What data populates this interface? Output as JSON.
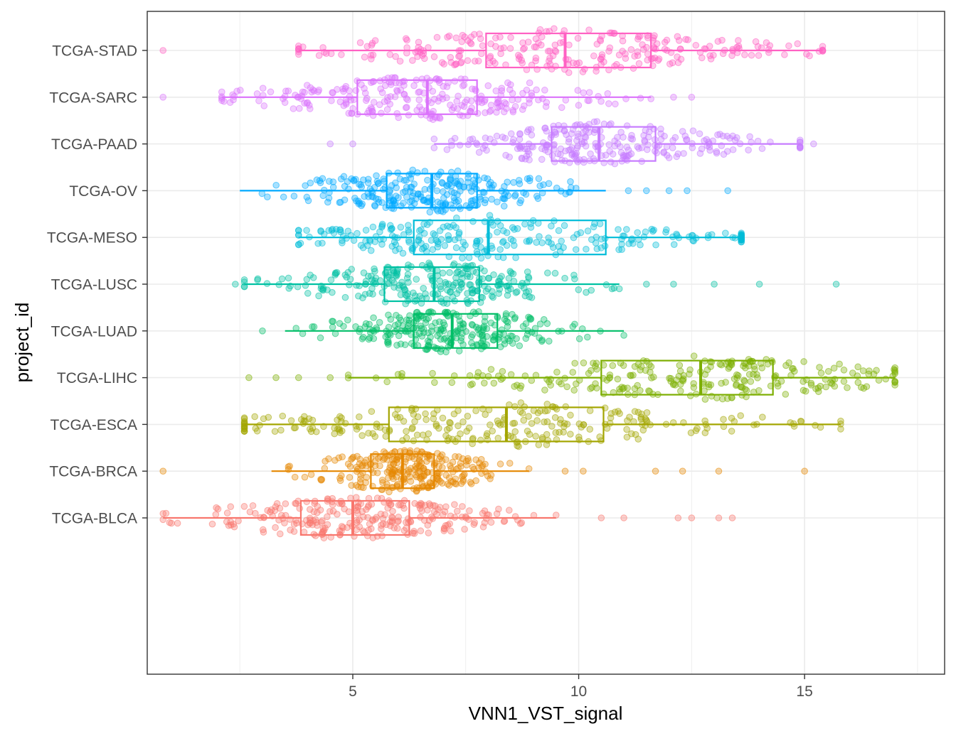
{
  "chart_data": {
    "type": "box-beeswarm",
    "orientation": "horizontal",
    "xlabel": "VNN1_VST_signal",
    "ylabel": "project_id",
    "xlim": [
      0.45,
      18.1
    ],
    "x_ticks": [
      5,
      10,
      15
    ],
    "x_tick_labels": [
      "5",
      "10",
      "15"
    ],
    "grid": true,
    "legend": "none",
    "categories": [
      "TCGA-STAD",
      "TCGA-SARC",
      "TCGA-PAAD",
      "TCGA-OV",
      "TCGA-MESO",
      "TCGA-LUSC",
      "TCGA-LUAD",
      "TCGA-LIHC",
      "TCGA-ESCA",
      "TCGA-BRCA",
      "TCGA-BLCA"
    ],
    "series": [
      {
        "category": "TCGA-STAD",
        "color": "#FF61C3",
        "whisker_low": 3.8,
        "q1": 7.95,
        "median": 9.7,
        "q3": 11.6,
        "whisker_high": 15.4,
        "outliers": [
          0.8
        ]
      },
      {
        "category": "TCGA-SARC",
        "color": "#DB72FB",
        "whisker_low": 2.1,
        "q1": 5.1,
        "median": 6.65,
        "q3": 7.75,
        "whisker_high": 11.6,
        "outliers": [
          0.8,
          12.1,
          12.5
        ]
      },
      {
        "category": "TCGA-PAAD",
        "color": "#C77CFF",
        "whisker_low": 6.8,
        "q1": 9.4,
        "median": 10.45,
        "q3": 11.7,
        "whisker_high": 14.9,
        "outliers": [
          4.5,
          5.0,
          15.2
        ]
      },
      {
        "category": "TCGA-OV",
        "color": "#00A9FF",
        "whisker_low": 2.5,
        "q1": 5.75,
        "median": 6.75,
        "q3": 7.75,
        "whisker_high": 10.6,
        "outliers": [
          11.1,
          11.5,
          12.0,
          12.4,
          13.3
        ]
      },
      {
        "category": "TCGA-MESO",
        "color": "#00BCD8",
        "whisker_low": 3.8,
        "q1": 6.35,
        "median": 8.0,
        "q3": 10.6,
        "whisker_high": 13.6,
        "outliers": []
      },
      {
        "category": "TCGA-LUSC",
        "color": "#00C1A3",
        "whisker_low": 2.6,
        "q1": 5.7,
        "median": 6.8,
        "q3": 7.8,
        "whisker_high": 10.9,
        "outliers": [
          2.4,
          11.5,
          12.1,
          13.0,
          14.0,
          15.7
        ]
      },
      {
        "category": "TCGA-LUAD",
        "color": "#00BE67",
        "whisker_low": 3.5,
        "q1": 6.35,
        "median": 7.2,
        "q3": 8.2,
        "whisker_high": 11.0,
        "outliers": [
          3.0
        ]
      },
      {
        "category": "TCGA-LIHC",
        "color": "#7CAE00",
        "whisker_low": 4.9,
        "q1": 10.5,
        "median": 12.7,
        "q3": 14.3,
        "whisker_high": 17.0,
        "outliers": [
          2.7,
          3.3,
          3.8,
          4.5
        ]
      },
      {
        "category": "TCGA-ESCA",
        "color": "#A3A500",
        "whisker_low": 2.6,
        "q1": 5.8,
        "median": 8.4,
        "q3": 10.55,
        "whisker_high": 15.8,
        "outliers": []
      },
      {
        "category": "TCGA-BRCA",
        "color": "#E58700",
        "whisker_low": 3.2,
        "q1": 5.4,
        "median": 6.1,
        "q3": 6.8,
        "whisker_high": 8.9,
        "outliers": [
          0.8,
          9.7,
          10.1,
          11.7,
          12.3,
          13.1,
          15.0
        ]
      },
      {
        "category": "TCGA-BLCA",
        "color": "#F8766D",
        "whisker_low": 0.8,
        "q1": 3.85,
        "median": 5.0,
        "q3": 6.25,
        "whisker_high": 9.5,
        "outliers": [
          10.5,
          11.0,
          12.2,
          12.5,
          13.1,
          13.4
        ]
      }
    ]
  }
}
